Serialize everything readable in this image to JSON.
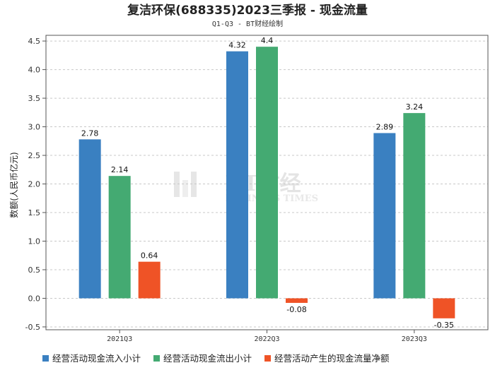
{
  "title": "复洁环保(688335)2023三季报 - 现金流量",
  "subtitle": "Q1-Q3 - BT财经绘制",
  "watermark": {
    "main": "BT财经",
    "sub": "BUSINESS TIMES"
  },
  "colors": {
    "inflow": "#3a80c1",
    "outflow": "#44aa72",
    "net": "#ef5326",
    "grid": "#c8c8c8",
    "axis": "#555555"
  },
  "chart_data": {
    "type": "bar",
    "title": "复洁环保(688335)2023三季报 - 现金流量",
    "subtitle": "Q1-Q3 - BT财经绘制",
    "xlabel": "",
    "ylabel": "数额(人民币亿元)",
    "ylim": [
      -0.55,
      4.6
    ],
    "yticks": [
      -0.5,
      0.0,
      0.5,
      1.0,
      1.5,
      2.0,
      2.5,
      3.0,
      3.5,
      4.0,
      4.5
    ],
    "grid": true,
    "legend_position": "bottom",
    "categories": [
      "2021Q3",
      "2022Q3",
      "2023Q3"
    ],
    "series": [
      {
        "name": "经营活动现金流入小计",
        "color": "#3a80c1",
        "values": [
          2.78,
          4.32,
          2.89
        ],
        "labels": [
          "2.78",
          "4.32",
          "2.89"
        ]
      },
      {
        "name": "经营活动现金流出小计",
        "color": "#44aa72",
        "values": [
          2.14,
          4.4,
          3.24
        ],
        "labels": [
          "2.14",
          "4.4",
          "3.24"
        ]
      },
      {
        "name": "经营活动产生的现金流量净额",
        "color": "#ef5326",
        "values": [
          0.64,
          -0.08,
          -0.35
        ],
        "labels": [
          "0.64",
          "-0.08",
          "-0.35"
        ]
      }
    ]
  }
}
